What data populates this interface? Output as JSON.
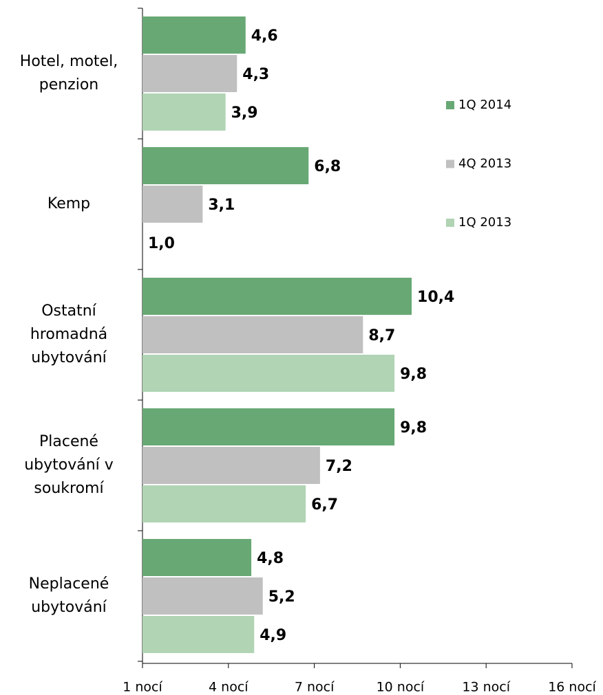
{
  "chart_data": {
    "type": "bar",
    "orientation": "horizontal",
    "categories": [
      "Hotel, motel,\npenzion",
      "Kemp",
      "Ostatní\nhromadná\nubytování",
      "Placené\nubytování v\nsoukromí",
      "Neplacené\nubytování"
    ],
    "series": [
      {
        "name": "1Q 2014",
        "color": "#68a874",
        "values": [
          4.6,
          6.8,
          10.4,
          9.8,
          4.8
        ],
        "value_labels": [
          "4,6",
          "6,8",
          "10,4",
          "9,8",
          "4,8"
        ]
      },
      {
        "name": "4Q 2013",
        "color": "#c0c0c0",
        "values": [
          4.3,
          3.1,
          8.7,
          7.2,
          5.2
        ],
        "value_labels": [
          "4,3",
          "3,1",
          "8,7",
          "7,2",
          "5,2"
        ]
      },
      {
        "name": "1Q 2013",
        "color": "#b0d4b4",
        "values": [
          3.9,
          1.0,
          9.8,
          6.7,
          4.9
        ],
        "value_labels": [
          "3,9",
          "1,0",
          "9,8",
          "6,7",
          "4,9"
        ]
      }
    ],
    "xlim": [
      1,
      16
    ],
    "xticks": [
      {
        "value": 1,
        "label": "1 nocí"
      },
      {
        "value": 4,
        "label": "4 nocí"
      },
      {
        "value": 7,
        "label": "7 nocí"
      },
      {
        "value": 10,
        "label": "10 nocí"
      },
      {
        "value": 13,
        "label": "13 nocí"
      },
      {
        "value": 16,
        "label": "16 nocí"
      }
    ],
    "legend": "right"
  }
}
